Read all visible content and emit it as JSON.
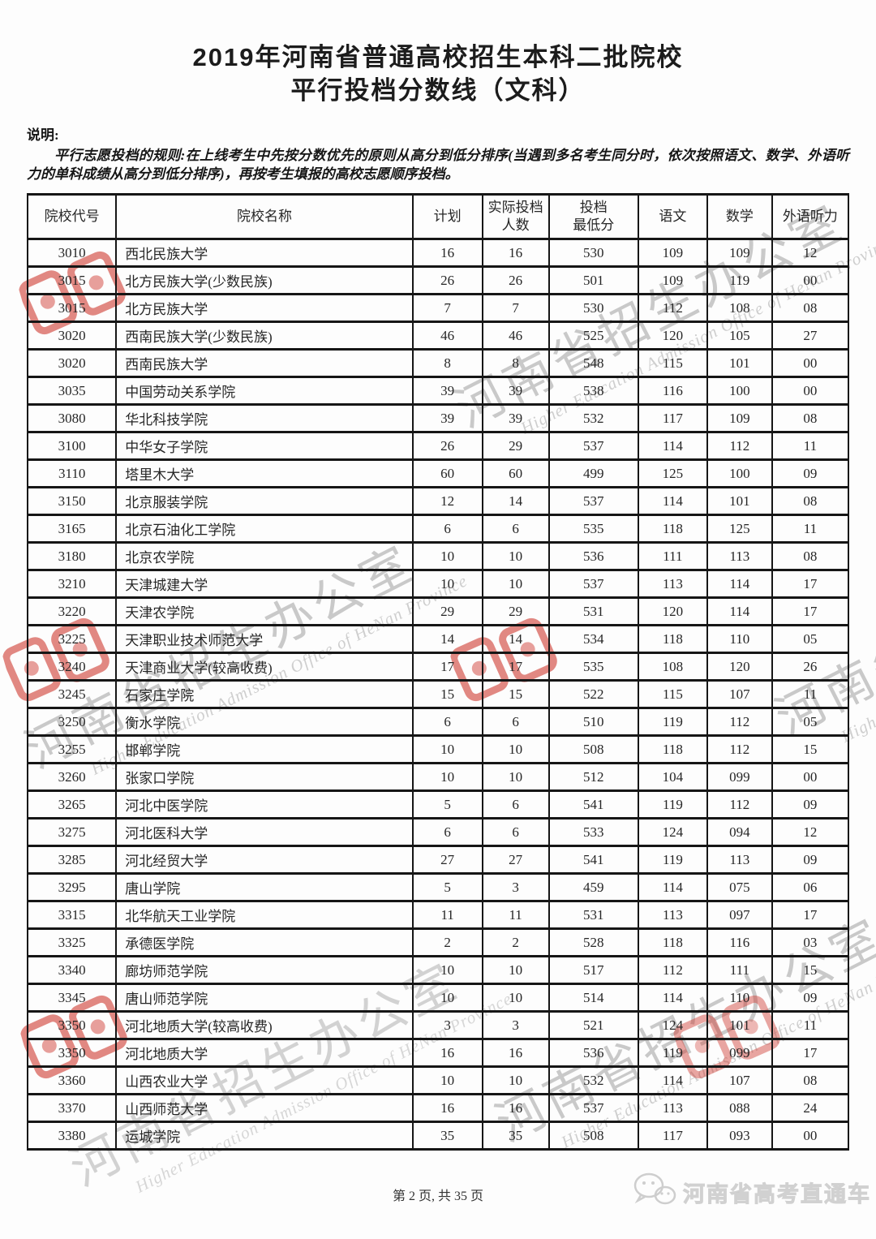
{
  "title": {
    "line1": "2019年河南省普通高校招生本科二批院校",
    "line2": "平行投档分数线（文科）"
  },
  "notes": {
    "label": "说明:",
    "body": "平行志愿投档的规则:在上线考生中先按分数优先的原则从高分到低分排序(当遇到多名考生同分时，依次按照语文、数学、外语听力的单科成绩从高分到低分排序)，再按考生填报的高校志愿顺序投档。"
  },
  "table": {
    "headers": [
      "院校代号",
      "院校名称",
      "计划",
      "实际投档\n人数",
      "投档\n最低分",
      "语文",
      "数学",
      "外语听力"
    ],
    "rows": [
      [
        "3010",
        "西北民族大学",
        "16",
        "16",
        "530",
        "109",
        "109",
        "12"
      ],
      [
        "3015",
        "北方民族大学(少数民族)",
        "26",
        "26",
        "501",
        "109",
        "119",
        "00"
      ],
      [
        "3015",
        "北方民族大学",
        "7",
        "7",
        "530",
        "112",
        "108",
        "08"
      ],
      [
        "3020",
        "西南民族大学(少数民族)",
        "46",
        "46",
        "525",
        "120",
        "105",
        "27"
      ],
      [
        "3020",
        "西南民族大学",
        "8",
        "8",
        "548",
        "115",
        "101",
        "00"
      ],
      [
        "3035",
        "中国劳动关系学院",
        "39",
        "39",
        "538",
        "116",
        "100",
        "00"
      ],
      [
        "3080",
        "华北科技学院",
        "39",
        "39",
        "532",
        "117",
        "109",
        "08"
      ],
      [
        "3100",
        "中华女子学院",
        "26",
        "29",
        "537",
        "114",
        "112",
        "11"
      ],
      [
        "3110",
        "塔里木大学",
        "60",
        "60",
        "499",
        "125",
        "100",
        "09"
      ],
      [
        "3150",
        "北京服装学院",
        "12",
        "14",
        "537",
        "114",
        "101",
        "08"
      ],
      [
        "3165",
        "北京石油化工学院",
        "6",
        "6",
        "535",
        "118",
        "125",
        "11"
      ],
      [
        "3180",
        "北京农学院",
        "10",
        "10",
        "536",
        "111",
        "113",
        "08"
      ],
      [
        "3210",
        "天津城建大学",
        "10",
        "10",
        "537",
        "113",
        "114",
        "17"
      ],
      [
        "3220",
        "天津农学院",
        "29",
        "29",
        "531",
        "120",
        "114",
        "17"
      ],
      [
        "3225",
        "天津职业技术师范大学",
        "14",
        "14",
        "534",
        "118",
        "110",
        "05"
      ],
      [
        "3240",
        "天津商业大学(较高收费)",
        "17",
        "17",
        "535",
        "108",
        "120",
        "26"
      ],
      [
        "3245",
        "石家庄学院",
        "15",
        "15",
        "522",
        "115",
        "107",
        "11"
      ],
      [
        "3250",
        "衡水学院",
        "6",
        "6",
        "510",
        "119",
        "112",
        "05"
      ],
      [
        "3255",
        "邯郸学院",
        "10",
        "10",
        "508",
        "118",
        "112",
        "15"
      ],
      [
        "3260",
        "张家口学院",
        "10",
        "10",
        "512",
        "104",
        "099",
        "00"
      ],
      [
        "3265",
        "河北中医学院",
        "5",
        "6",
        "541",
        "119",
        "112",
        "09"
      ],
      [
        "3275",
        "河北医科大学",
        "6",
        "6",
        "533",
        "124",
        "094",
        "12"
      ],
      [
        "3285",
        "河北经贸大学",
        "27",
        "27",
        "541",
        "119",
        "113",
        "09"
      ],
      [
        "3295",
        "唐山学院",
        "5",
        "3",
        "459",
        "114",
        "075",
        "06"
      ],
      [
        "3315",
        "北华航天工业学院",
        "11",
        "11",
        "531",
        "113",
        "097",
        "17"
      ],
      [
        "3325",
        "承德医学院",
        "2",
        "2",
        "528",
        "118",
        "116",
        "03"
      ],
      [
        "3340",
        "廊坊师范学院",
        "10",
        "10",
        "517",
        "112",
        "111",
        "15"
      ],
      [
        "3345",
        "唐山师范学院",
        "10",
        "10",
        "514",
        "114",
        "110",
        "09"
      ],
      [
        "3350",
        "河北地质大学(较高收费)",
        "3",
        "3",
        "521",
        "124",
        "101",
        "11"
      ],
      [
        "3350",
        "河北地质大学",
        "16",
        "16",
        "536",
        "119",
        "099",
        "17"
      ],
      [
        "3360",
        "山西农业大学",
        "10",
        "10",
        "532",
        "114",
        "107",
        "08"
      ],
      [
        "3370",
        "山西师范大学",
        "16",
        "16",
        "537",
        "113",
        "088",
        "24"
      ],
      [
        "3380",
        "运城学院",
        "35",
        "35",
        "508",
        "117",
        "093",
        "00"
      ]
    ]
  },
  "footer": {
    "page_info": "第 2 页, 共 35 页"
  },
  "watermarks": {
    "gray_cn": "河南省招生办公室",
    "gray_en": "Higher Education Admission Office of HeNan Province",
    "corner_text": "河南省高考直通车"
  },
  "colors": {
    "stamp_red": "#cf3b32",
    "watermark_gray": "#9f9f9f",
    "border_black": "#161616"
  }
}
